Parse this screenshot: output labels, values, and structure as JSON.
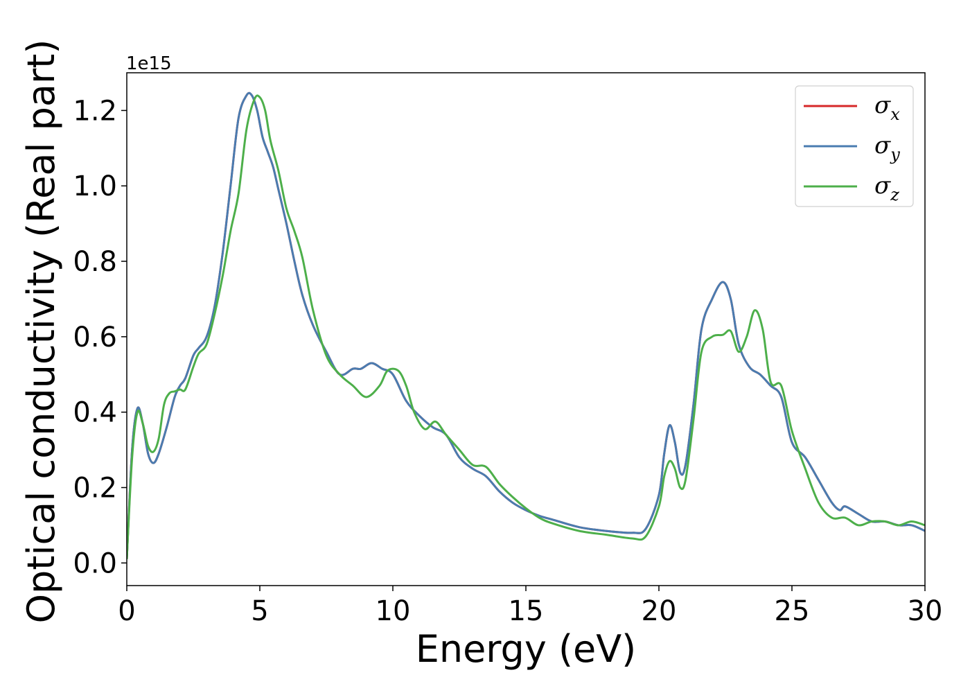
{
  "chart_data": {
    "type": "line",
    "xlabel": "Energy (eV)",
    "ylabel": "Optical conductivity (Real part)",
    "y_offset_label": "1e15",
    "xlim": [
      0,
      30
    ],
    "ylim": [
      -0.06,
      1.3
    ],
    "x_ticks": [
      0,
      5,
      10,
      15,
      20,
      25,
      30
    ],
    "x_tick_labels": [
      "0",
      "5",
      "10",
      "15",
      "20",
      "25",
      "30"
    ],
    "y_ticks": [
      0.0,
      0.2,
      0.4,
      0.6,
      0.8,
      1.0,
      1.2
    ],
    "y_tick_labels": [
      "0.0",
      "0.2",
      "0.4",
      "0.6",
      "0.8",
      "1.0",
      "1.2"
    ],
    "grid": false,
    "legend_position": "top-right",
    "series": [
      {
        "name": "σx",
        "color": "#d62728",
        "x": [
          0,
          0.2,
          0.4,
          0.6,
          0.8,
          1.0,
          1.2,
          1.5,
          1.8,
          2.0,
          2.2,
          2.5,
          2.7,
          3.0,
          3.3,
          3.6,
          3.9,
          4.2,
          4.5,
          4.7,
          4.9,
          5.1,
          5.3,
          5.5,
          5.7,
          6.0,
          6.3,
          6.6,
          7.0,
          7.5,
          8.0,
          8.5,
          8.8,
          9.2,
          9.6,
          10.0,
          10.5,
          11.0,
          11.5,
          12.0,
          12.5,
          13.0,
          13.5,
          14.0,
          14.5,
          15.0,
          15.5,
          16.0,
          17.0,
          18.0,
          19.0,
          19.5,
          20.0,
          20.2,
          20.4,
          20.6,
          20.8,
          21.0,
          21.3,
          21.6,
          22.0,
          22.4,
          22.7,
          23.0,
          23.4,
          23.8,
          24.2,
          24.6,
          25.0,
          25.5,
          26.0,
          26.5,
          26.8,
          27.0,
          27.5,
          28.0,
          28.5,
          29.0,
          29.5,
          30.0
        ],
        "values": [
          0.01,
          0.3,
          0.41,
          0.37,
          0.29,
          0.265,
          0.29,
          0.36,
          0.44,
          0.47,
          0.49,
          0.55,
          0.57,
          0.6,
          0.68,
          0.82,
          1.0,
          1.18,
          1.24,
          1.24,
          1.2,
          1.13,
          1.09,
          1.05,
          0.99,
          0.9,
          0.8,
          0.71,
          0.63,
          0.56,
          0.5,
          0.515,
          0.515,
          0.53,
          0.515,
          0.5,
          0.43,
          0.39,
          0.36,
          0.34,
          0.28,
          0.25,
          0.23,
          0.19,
          0.16,
          0.14,
          0.125,
          0.115,
          0.095,
          0.085,
          0.08,
          0.09,
          0.18,
          0.29,
          0.365,
          0.32,
          0.24,
          0.26,
          0.42,
          0.62,
          0.7,
          0.745,
          0.7,
          0.58,
          0.52,
          0.5,
          0.47,
          0.44,
          0.32,
          0.28,
          0.22,
          0.16,
          0.14,
          0.15,
          0.13,
          0.11,
          0.11,
          0.1,
          0.1,
          0.085
        ]
      },
      {
        "name": "σy",
        "color": "#4a7cb0",
        "x": [
          0,
          0.2,
          0.4,
          0.6,
          0.8,
          1.0,
          1.2,
          1.5,
          1.8,
          2.0,
          2.2,
          2.5,
          2.7,
          3.0,
          3.3,
          3.6,
          3.9,
          4.2,
          4.5,
          4.7,
          4.9,
          5.1,
          5.3,
          5.5,
          5.7,
          6.0,
          6.3,
          6.6,
          7.0,
          7.5,
          8.0,
          8.5,
          8.8,
          9.2,
          9.6,
          10.0,
          10.5,
          11.0,
          11.5,
          12.0,
          12.5,
          13.0,
          13.5,
          14.0,
          14.5,
          15.0,
          15.5,
          16.0,
          17.0,
          18.0,
          19.0,
          19.5,
          20.0,
          20.2,
          20.4,
          20.6,
          20.8,
          21.0,
          21.3,
          21.6,
          22.0,
          22.4,
          22.7,
          23.0,
          23.4,
          23.8,
          24.2,
          24.6,
          25.0,
          25.5,
          26.0,
          26.5,
          26.8,
          27.0,
          27.5,
          28.0,
          28.5,
          29.0,
          29.5,
          30.0
        ],
        "values": [
          0.01,
          0.3,
          0.41,
          0.37,
          0.29,
          0.265,
          0.29,
          0.36,
          0.44,
          0.47,
          0.49,
          0.55,
          0.57,
          0.6,
          0.68,
          0.82,
          1.0,
          1.18,
          1.24,
          1.24,
          1.2,
          1.13,
          1.09,
          1.05,
          0.99,
          0.9,
          0.8,
          0.71,
          0.63,
          0.56,
          0.5,
          0.515,
          0.515,
          0.53,
          0.515,
          0.5,
          0.43,
          0.39,
          0.36,
          0.34,
          0.28,
          0.25,
          0.23,
          0.19,
          0.16,
          0.14,
          0.125,
          0.115,
          0.095,
          0.085,
          0.08,
          0.09,
          0.18,
          0.29,
          0.365,
          0.32,
          0.24,
          0.26,
          0.42,
          0.62,
          0.7,
          0.745,
          0.7,
          0.58,
          0.52,
          0.5,
          0.47,
          0.44,
          0.32,
          0.28,
          0.22,
          0.16,
          0.14,
          0.15,
          0.13,
          0.11,
          0.11,
          0.1,
          0.1,
          0.085
        ]
      },
      {
        "name": "σz",
        "color": "#4daf4a",
        "x": [
          0,
          0.2,
          0.4,
          0.6,
          0.8,
          1.0,
          1.2,
          1.4,
          1.6,
          1.8,
          2.0,
          2.2,
          2.5,
          2.7,
          3.0,
          3.3,
          3.6,
          3.9,
          4.2,
          4.5,
          4.8,
          5.0,
          5.2,
          5.4,
          5.7,
          6.0,
          6.3,
          6.6,
          7.0,
          7.5,
          8.0,
          8.5,
          9.0,
          9.5,
          9.8,
          10.2,
          10.5,
          10.8,
          11.2,
          11.6,
          12.0,
          12.5,
          13.0,
          13.5,
          14.0,
          14.5,
          15.0,
          15.5,
          16.0,
          17.0,
          18.0,
          19.0,
          19.5,
          20.0,
          20.2,
          20.4,
          20.6,
          20.8,
          21.0,
          21.3,
          21.6,
          22.0,
          22.4,
          22.7,
          23.0,
          23.3,
          23.6,
          23.9,
          24.2,
          24.6,
          25.0,
          25.5,
          26.0,
          26.5,
          27.0,
          27.5,
          28.0,
          28.5,
          29.0,
          29.5,
          30.0
        ],
        "values": [
          0.01,
          0.28,
          0.4,
          0.37,
          0.31,
          0.295,
          0.33,
          0.42,
          0.45,
          0.455,
          0.46,
          0.46,
          0.52,
          0.555,
          0.58,
          0.66,
          0.76,
          0.88,
          0.98,
          1.15,
          1.23,
          1.235,
          1.2,
          1.12,
          1.04,
          0.94,
          0.88,
          0.81,
          0.67,
          0.55,
          0.5,
          0.47,
          0.44,
          0.47,
          0.51,
          0.51,
          0.47,
          0.4,
          0.355,
          0.375,
          0.34,
          0.3,
          0.26,
          0.255,
          0.21,
          0.175,
          0.145,
          0.12,
          0.105,
          0.085,
          0.075,
          0.065,
          0.07,
          0.15,
          0.23,
          0.27,
          0.25,
          0.2,
          0.22,
          0.38,
          0.56,
          0.6,
          0.605,
          0.615,
          0.56,
          0.6,
          0.67,
          0.62,
          0.48,
          0.47,
          0.35,
          0.25,
          0.16,
          0.12,
          0.12,
          0.1,
          0.11,
          0.11,
          0.1,
          0.11,
          0.1
        ]
      }
    ]
  }
}
